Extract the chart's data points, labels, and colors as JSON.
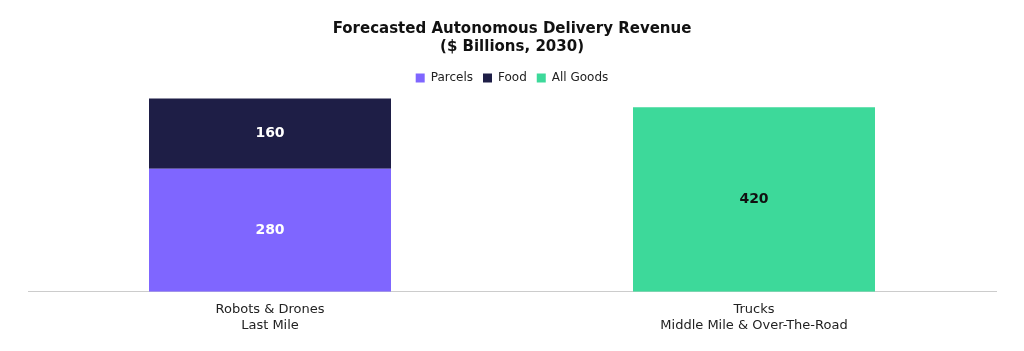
{
  "chart_data": {
    "type": "bar",
    "title": "Forecasted Autonomous Delivery Revenue\n($ Billions, 2030)",
    "categories": [
      "Robots & Drones\nLast Mile",
      "Trucks\nMiddle Mile & Over-The-Road"
    ],
    "stacked": true,
    "data_labels": true,
    "legend": "top",
    "grid": false,
    "series": [
      {
        "name": "Parcels",
        "color": "#7f66ff",
        "values": [
          280,
          null
        ]
      },
      {
        "name": "Food",
        "color": "#1e1e46",
        "values": [
          160,
          null
        ]
      },
      {
        "name": "All Goods",
        "color": "#3dd99a",
        "values": [
          null,
          420
        ]
      }
    ]
  }
}
